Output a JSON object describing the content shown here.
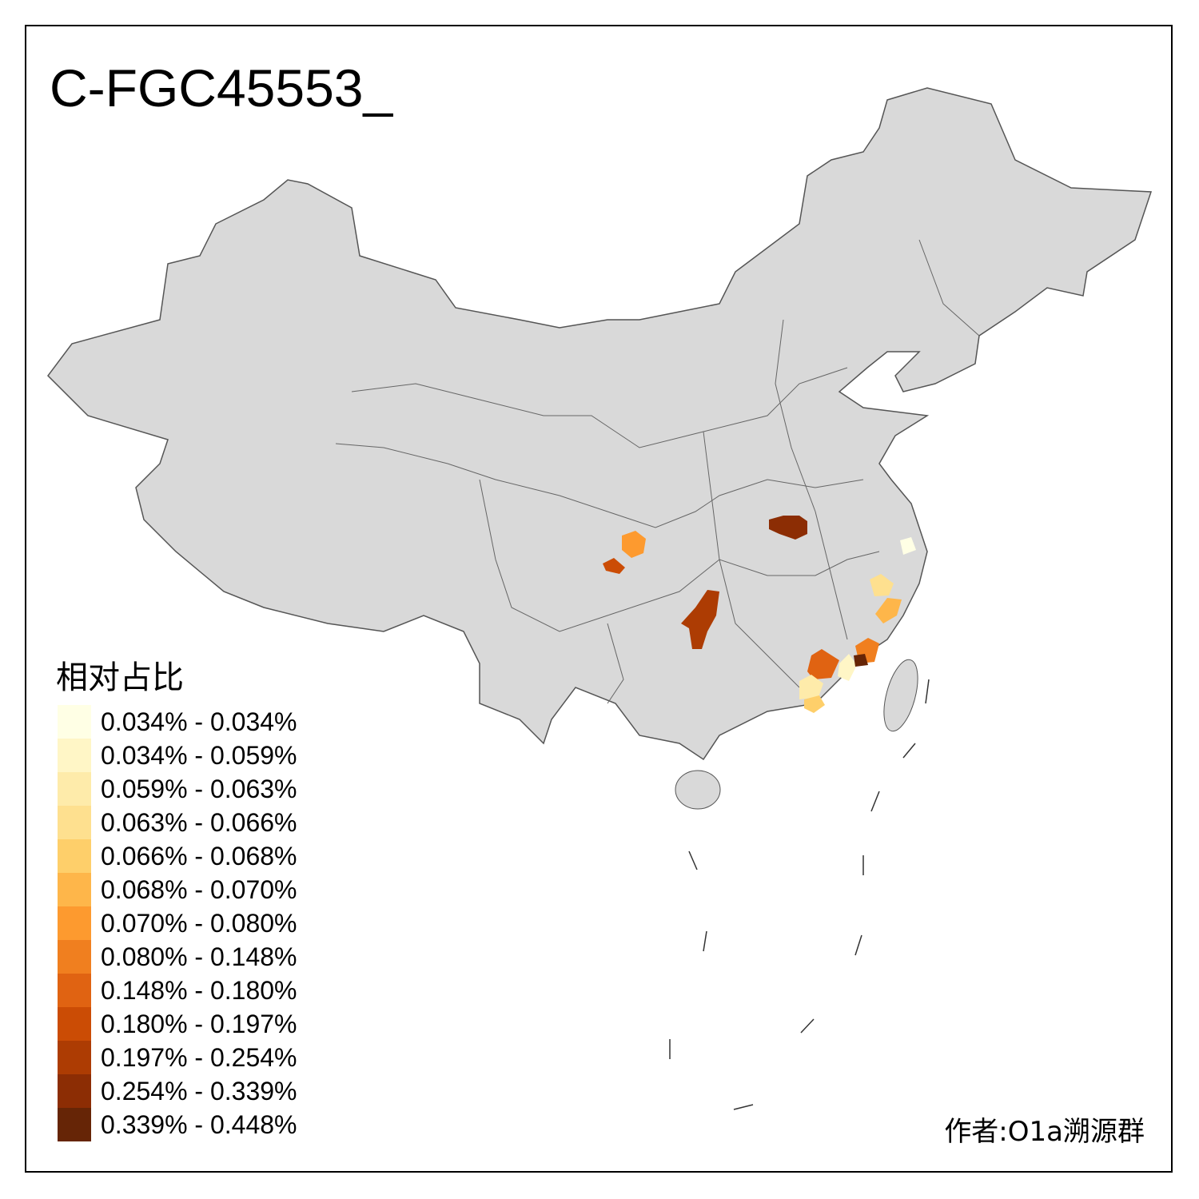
{
  "title": "C-FGC45553_",
  "author": "作者:O1a溯源群",
  "legend": {
    "title": "相对占比",
    "items": [
      {
        "label": "0.034% - 0.034%",
        "color": "#FFFFE5"
      },
      {
        "label": "0.034% - 0.059%",
        "color": "#FFF6C6"
      },
      {
        "label": "0.059% - 0.063%",
        "color": "#FEEBAA"
      },
      {
        "label": "0.063% - 0.066%",
        "color": "#FEE08F"
      },
      {
        "label": "0.066% - 0.068%",
        "color": "#FECF6A"
      },
      {
        "label": "0.068% - 0.070%",
        "color": "#FEB64A"
      },
      {
        "label": "0.070% - 0.080%",
        "color": "#FD9A2F"
      },
      {
        "label": "0.080% - 0.148%",
        "color": "#F07F1F"
      },
      {
        "label": "0.148% - 0.180%",
        "color": "#E06312"
      },
      {
        "label": "0.180% - 0.197%",
        "color": "#CB4C05"
      },
      {
        "label": "0.197% - 0.254%",
        "color": "#AD3C03"
      },
      {
        "label": "0.254% - 0.339%",
        "color": "#8C2D04"
      },
      {
        "label": "0.339% - 0.448%",
        "color": "#662506"
      }
    ]
  },
  "colors": {
    "base_land": "#D9D9D9",
    "border": "#666666"
  }
}
